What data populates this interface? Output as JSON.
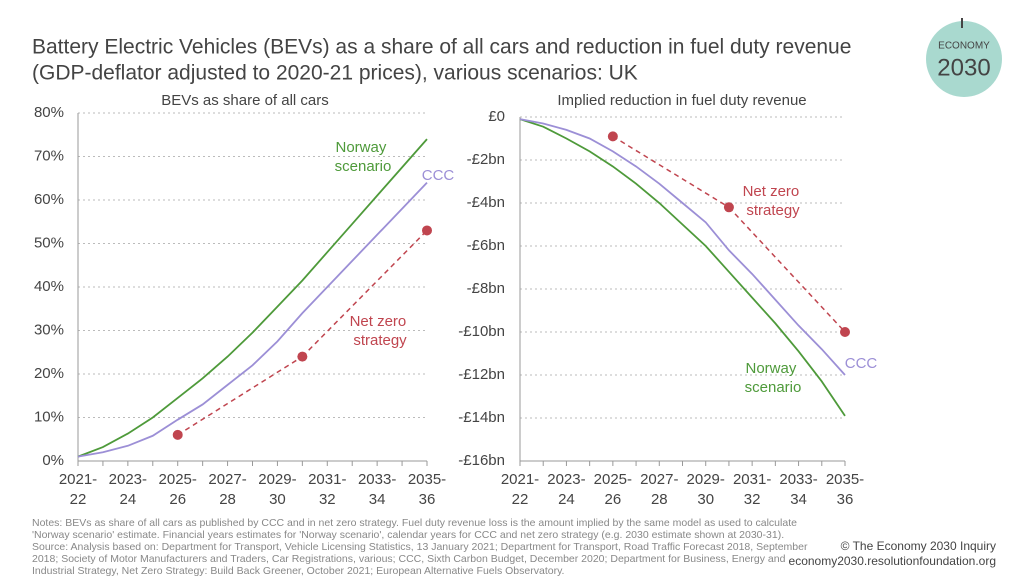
{
  "title": [
    "Battery Electric Vehicles (BEVs) as a share of all cars and reduction in fuel duty revenue",
    "(GDP-deflator adjusted to 2020-21 prices), various scenarios: UK"
  ],
  "logo": [
    "ECONOMY",
    "2030"
  ],
  "chart_data": [
    {
      "type": "line",
      "title": "BEVs as share of all cars",
      "categories": [
        "2021-22",
        null,
        "2023-24",
        null,
        "2025-26",
        null,
        "2027-28",
        null,
        "2029-30",
        null,
        "2031-32",
        null,
        "2033-34",
        null,
        "2035-36"
      ],
      "ylim": [
        0,
        80
      ],
      "yticks": [
        {
          "value": 0,
          "label": "0%"
        },
        {
          "value": 10,
          "label": "10%"
        },
        {
          "value": 20,
          "label": "20%"
        },
        {
          "value": 30,
          "label": "30%"
        },
        {
          "value": 40,
          "label": "40%"
        },
        {
          "value": 50,
          "label": "50%"
        },
        {
          "value": 60,
          "label": "60%"
        },
        {
          "value": 70,
          "label": "70%"
        },
        {
          "value": 80,
          "label": "80%"
        }
      ],
      "grid": true,
      "series": [
        {
          "name": "Norway scenario",
          "color": "#4e9a3a",
          "values": [
            1,
            3.2,
            6.3,
            10,
            14.5,
            19,
            24,
            29.5,
            35.5,
            41.5,
            48,
            54.5,
            61,
            67.5,
            74
          ]
        },
        {
          "name": "CCC",
          "color": "#9c8fd6",
          "values": [
            1,
            2,
            3.5,
            5.8,
            9.5,
            13,
            17.5,
            22,
            27.5,
            34,
            40,
            46,
            52,
            58,
            64
          ]
        },
        {
          "name": "Net zero strategy",
          "color": "#c0454f",
          "dashed": true,
          "values": [
            null,
            null,
            null,
            null,
            6,
            null,
            null,
            null,
            null,
            24,
            null,
            null,
            null,
            null,
            53
          ]
        }
      ]
    },
    {
      "type": "line",
      "title": "Implied reduction in fuel duty revenue",
      "categories": [
        "2021-22",
        null,
        "2023-24",
        null,
        "2025-26",
        null,
        "2027-28",
        null,
        "2029-30",
        null,
        "2031-32",
        null,
        "2033-34",
        null,
        "2035-36"
      ],
      "ylim": [
        -16,
        0
      ],
      "yticks": [
        {
          "value": 0,
          "label": "£0"
        },
        {
          "value": -2,
          "label": "-£2bn"
        },
        {
          "value": -4,
          "label": "-£4bn"
        },
        {
          "value": -6,
          "label": "-£6bn"
        },
        {
          "value": -8,
          "label": "-£8bn"
        },
        {
          "value": -10,
          "label": "-£10bn"
        },
        {
          "value": -12,
          "label": "-£12bn"
        },
        {
          "value": -14,
          "label": "-£14bn"
        },
        {
          "value": -16,
          "label": "-£16bn"
        }
      ],
      "grid": true,
      "series": [
        {
          "name": "Norway scenario",
          "color": "#4e9a3a",
          "values": [
            -0.1,
            -0.45,
            -1.0,
            -1.6,
            -2.3,
            -3.1,
            -4.0,
            -5.0,
            -6.0,
            -7.2,
            -8.4,
            -9.6,
            -10.9,
            -12.3,
            -13.9
          ]
        },
        {
          "name": "CCC",
          "color": "#9c8fd6",
          "values": [
            -0.1,
            -0.3,
            -0.6,
            -1.0,
            -1.6,
            -2.3,
            -3.1,
            -4.0,
            -4.9,
            -6.2,
            -7.3,
            -8.5,
            -9.7,
            -10.8,
            -12.0
          ]
        },
        {
          "name": "Net zero strategy",
          "color": "#c0454f",
          "dashed": true,
          "values": [
            null,
            null,
            null,
            null,
            -0.9,
            null,
            null,
            null,
            null,
            -4.2,
            null,
            null,
            null,
            null,
            -10
          ]
        }
      ]
    }
  ],
  "notes": [
    "Notes: BEVs as share of all cars as published by CCC and in net zero strategy. Fuel duty revenue loss is the amount implied by the same model as used to calculate",
    "'Norway scenario' estimate. Financial years estimates for 'Norway scenario', calendar years for CCC and net zero strategy (e.g. 2030 estimate shown at 2030-31).",
    "Source: Analysis based on: Department for Transport, Vehicle Licensing Statistics, 13 January 2021; Department for Transport, Road Traffic Forecast 2018, September",
    "2018; Society of Motor Manufacturers and Traders, Car Registrations, various; CCC, Sixth Carbon Budget, December 2020; Department for Business, Energy and",
    "Industrial Strategy, Net Zero Strategy: Build Back Greener, October 2021; European Alternative Fuels Observatory."
  ],
  "credit": [
    "© The Economy 2030 Inquiry",
    "economy2030.resolutionfoundation.org"
  ]
}
